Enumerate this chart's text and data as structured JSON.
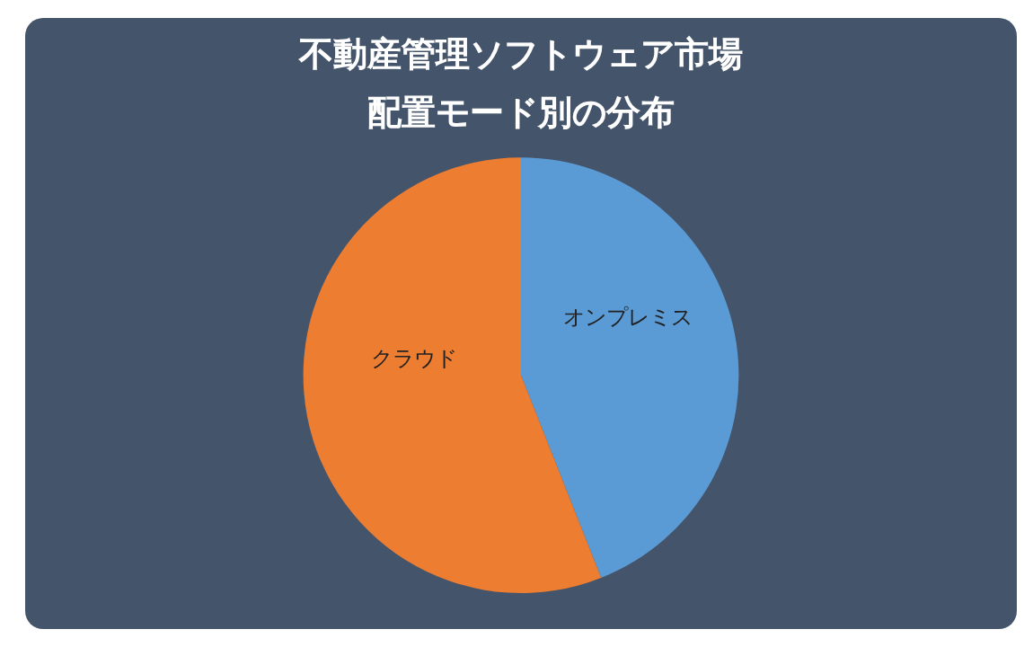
{
  "chart_data": {
    "type": "pie",
    "title": "不動産管理ソフトウェア市場",
    "subtitle": "配置モード別の分布",
    "categories": [
      "オンプレミス",
      "クラウド"
    ],
    "values": [
      44,
      56
    ],
    "colors": [
      "#5b9bd5",
      "#ed7d31"
    ]
  }
}
